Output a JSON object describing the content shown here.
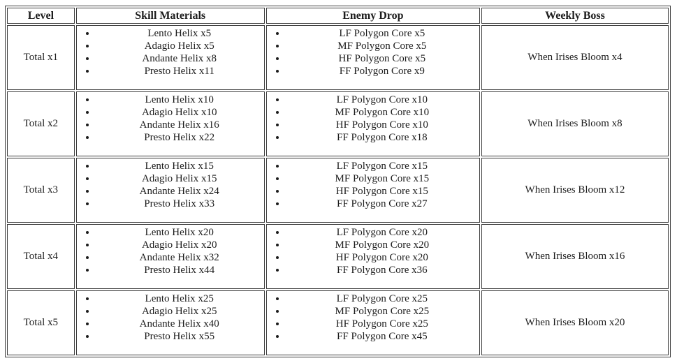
{
  "table": {
    "headers": [
      "Level",
      "Skill Materials",
      "Enemy Drop",
      "Weekly Boss"
    ],
    "rows": [
      {
        "level": "Total x1",
        "skill_materials": [
          "Lento Helix x5",
          "Adagio Helix x5",
          "Andante Helix x8",
          "Presto Helix x11"
        ],
        "enemy_drop": [
          "LF Polygon Core x5",
          "MF Polygon Core x5",
          "HF Polygon Core x5",
          "FF Polygon Core x9"
        ],
        "weekly_boss": "When Irises Bloom x4"
      },
      {
        "level": "Total x2",
        "skill_materials": [
          "Lento Helix x10",
          "Adagio Helix x10",
          "Andante Helix x16",
          "Presto Helix x22"
        ],
        "enemy_drop": [
          "LF Polygon Core x10",
          "MF Polygon Core x10",
          "HF Polygon Core x10",
          "FF Polygon Core x18"
        ],
        "weekly_boss": "When Irises Bloom x8"
      },
      {
        "level": "Total x3",
        "skill_materials": [
          "Lento Helix x15",
          "Adagio Helix x15",
          "Andante Helix x24",
          "Presto Helix x33"
        ],
        "enemy_drop": [
          "LF Polygon Core x15",
          "MF Polygon Core x15",
          "HF Polygon Core x15",
          "FF Polygon Core x27"
        ],
        "weekly_boss": "When Irises Bloom x12"
      },
      {
        "level": "Total x4",
        "skill_materials": [
          "Lento Helix x20",
          "Adagio Helix x20",
          "Andante Helix x32",
          "Presto Helix x44"
        ],
        "enemy_drop": [
          "LF Polygon Core x20",
          "MF Polygon Core x20",
          "HF Polygon Core x20",
          "FF Polygon Core x36"
        ],
        "weekly_boss": "When Irises Bloom x16"
      },
      {
        "level": "Total x5",
        "skill_materials": [
          "Lento Helix x25",
          "Adagio Helix x25",
          "Andante Helix x40",
          "Presto Helix x55"
        ],
        "enemy_drop": [
          "LF Polygon Core x25",
          "MF Polygon Core x25",
          "HF Polygon Core x25",
          "FF Polygon Core x45"
        ],
        "weekly_boss": "When Irises Bloom x20"
      }
    ],
    "colors": {
      "border": "#3d3d3d",
      "text": "#1c1c1c",
      "background": "#ffffff"
    }
  }
}
